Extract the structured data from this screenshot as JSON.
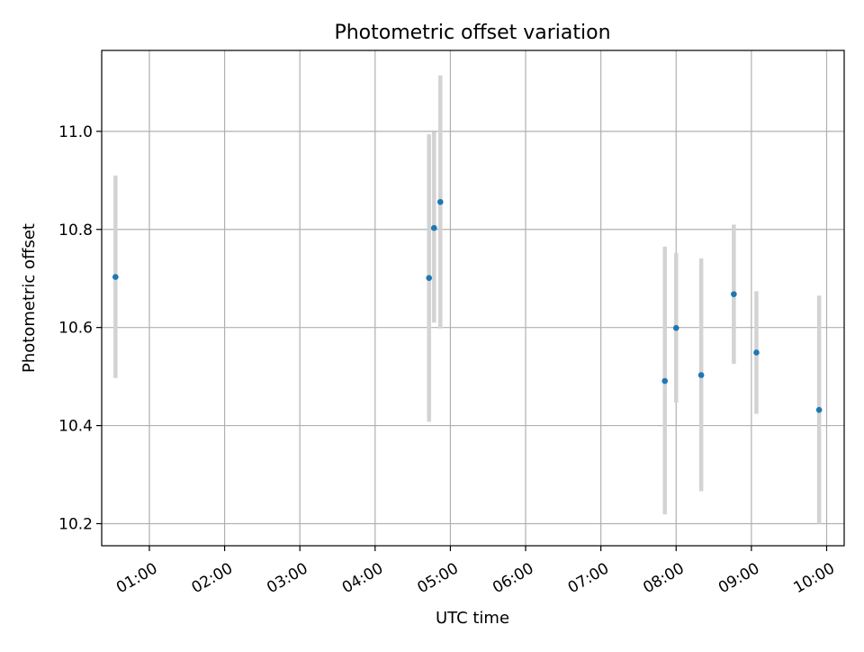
{
  "chart_data": {
    "type": "scatter",
    "title": "Photometric offset variation",
    "xlabel": "UTC time",
    "ylabel": "Photometric offset",
    "x_tick_labels": [
      "01:00",
      "02:00",
      "03:00",
      "04:00",
      "05:00",
      "06:00",
      "07:00",
      "08:00",
      "09:00",
      "10:00"
    ],
    "x_tick_hours": [
      1,
      2,
      3,
      4,
      5,
      6,
      7,
      8,
      9,
      10
    ],
    "y_ticks": [
      10.2,
      10.4,
      10.6,
      10.8,
      11.0
    ],
    "y_tick_labels": [
      "10.2",
      "10.4",
      "10.6",
      "10.8",
      "11.0"
    ],
    "xlim": [
      "00:22",
      "10:14"
    ],
    "ylim": [
      10.155,
      11.165
    ],
    "grid": true,
    "colors": {
      "point": "#1f77b4",
      "errorbar": "#d3d3d3",
      "grid": "#b0b0b0"
    },
    "points": [
      {
        "x": "00:33",
        "y": 10.703,
        "yerr_low": 10.497,
        "yerr_high": 10.91
      },
      {
        "x": "04:43",
        "y": 10.701,
        "yerr_low": 10.408,
        "yerr_high": 10.994
      },
      {
        "x": "04:47",
        "y": 10.803,
        "yerr_low": 10.61,
        "yerr_high": 10.999
      },
      {
        "x": "04:52",
        "y": 10.856,
        "yerr_low": 10.598,
        "yerr_high": 11.114
      },
      {
        "x": "07:51",
        "y": 10.491,
        "yerr_low": 10.219,
        "yerr_high": 10.765
      },
      {
        "x": "08:00",
        "y": 10.599,
        "yerr_low": 10.447,
        "yerr_high": 10.752
      },
      {
        "x": "08:20",
        "y": 10.503,
        "yerr_low": 10.266,
        "yerr_high": 10.741
      },
      {
        "x": "08:46",
        "y": 10.668,
        "yerr_low": 10.526,
        "yerr_high": 10.81
      },
      {
        "x": "09:04",
        "y": 10.549,
        "yerr_low": 10.424,
        "yerr_high": 10.674
      },
      {
        "x": "09:54",
        "y": 10.432,
        "yerr_low": 10.2,
        "yerr_high": 10.665
      }
    ]
  }
}
